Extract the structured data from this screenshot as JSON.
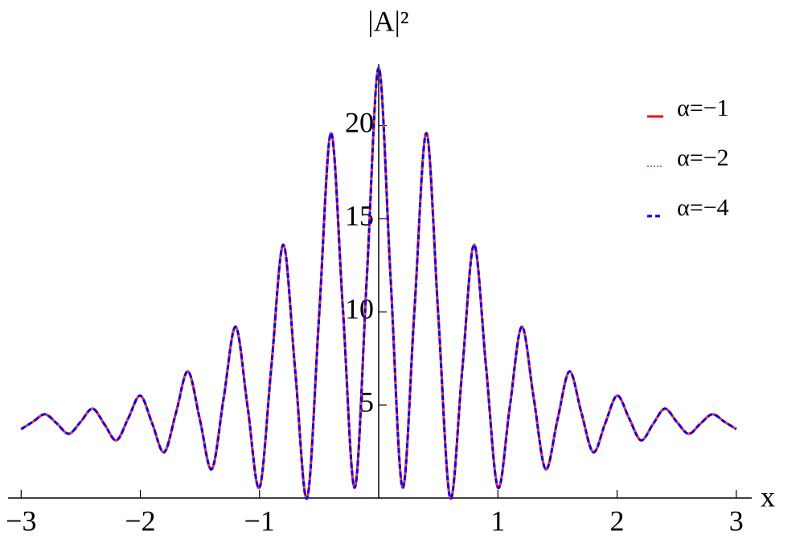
{
  "chart_data": {
    "type": "line",
    "ylabel": "|A|²",
    "xlabel": "x",
    "x": [
      -3.0,
      -2.9,
      -2.8,
      -2.7,
      -2.6,
      -2.5,
      -2.4,
      -2.3,
      -2.2,
      -2.1,
      -2.0,
      -1.9,
      -1.8,
      -1.7,
      -1.6,
      -1.5,
      -1.4,
      -1.3,
      -1.2,
      -1.1,
      -1.0,
      -0.9,
      -0.8,
      -0.7,
      -0.6,
      -0.5,
      -0.4,
      -0.3,
      -0.2,
      -0.1,
      0,
      0.1,
      0.2,
      0.3,
      0.4,
      0.5,
      0.6,
      0.7,
      0.8,
      0.9,
      1.0,
      1.1,
      1.2,
      1.3,
      1.4,
      1.5,
      1.6,
      1.7,
      1.8,
      1.9,
      2.0,
      2.1,
      2.2,
      2.3,
      2.4,
      2.5,
      2.6,
      2.7,
      2.8,
      2.9,
      3.0
    ],
    "series": [
      {
        "name": "α=−1",
        "color": "#ff0000",
        "style": "solid",
        "values": [
          3.7,
          4.1,
          4.5,
          4.0,
          3.45,
          4.1,
          4.8,
          3.95,
          3.1,
          4.3,
          5.5,
          4.0,
          2.46,
          4.6,
          6.8,
          4.2,
          1.55,
          5.4,
          9.2,
          4.9,
          0.56,
          7.1,
          13.6,
          6.8,
          0,
          9.8,
          19.6,
          10.1,
          0.56,
          11.8,
          23.1,
          11.8,
          0.56,
          10.1,
          19.6,
          9.8,
          0,
          6.8,
          13.6,
          7.1,
          0.56,
          4.9,
          9.2,
          5.4,
          1.55,
          4.2,
          6.8,
          4.6,
          2.46,
          4.0,
          5.5,
          4.3,
          3.1,
          3.95,
          4.8,
          4.1,
          3.45,
          4.0,
          4.5,
          4.1,
          3.7
        ]
      },
      {
        "name": "α=−2",
        "color": "#a07888",
        "style": "dotted",
        "values": [
          3.7,
          4.1,
          4.5,
          4.0,
          3.45,
          4.1,
          4.8,
          3.95,
          3.1,
          4.3,
          5.5,
          4.0,
          2.46,
          4.6,
          6.8,
          4.2,
          1.55,
          5.4,
          9.2,
          4.9,
          0.56,
          7.1,
          13.6,
          6.8,
          0,
          9.8,
          19.6,
          10.1,
          0.56,
          11.8,
          23.1,
          11.8,
          0.56,
          10.1,
          19.6,
          9.8,
          0,
          6.8,
          13.6,
          7.1,
          0.56,
          4.9,
          9.2,
          5.4,
          1.55,
          4.2,
          6.8,
          4.6,
          2.46,
          4.0,
          5.5,
          4.3,
          3.1,
          3.95,
          4.8,
          4.1,
          3.45,
          4.0,
          4.5,
          4.1,
          3.7
        ]
      },
      {
        "name": "α=−4",
        "color": "#0000ff",
        "style": "dashed",
        "values": [
          3.7,
          4.1,
          4.5,
          4.0,
          3.45,
          4.1,
          4.8,
          3.95,
          3.1,
          4.3,
          5.5,
          4.0,
          2.46,
          4.6,
          6.8,
          4.2,
          1.55,
          5.4,
          9.2,
          4.9,
          0.56,
          7.1,
          13.6,
          6.8,
          0,
          9.8,
          19.6,
          10.1,
          0.56,
          11.8,
          23.1,
          11.8,
          0.56,
          10.1,
          19.6,
          9.8,
          0,
          6.8,
          13.6,
          7.1,
          0.56,
          4.9,
          9.2,
          5.4,
          1.55,
          4.2,
          6.8,
          4.6,
          2.46,
          4.0,
          5.5,
          4.3,
          3.1,
          3.95,
          4.8,
          4.1,
          3.45,
          4.0,
          4.5,
          4.1,
          3.7
        ]
      }
    ],
    "xlim": [
      -3.11,
      3.13
    ],
    "ylim": [
      0,
      23.3
    ],
    "xticks": [
      {
        "value": -3,
        "label": "−3"
      },
      {
        "value": -2,
        "label": "−2"
      },
      {
        "value": -1,
        "label": "−1"
      },
      1,
      2,
      3
    ],
    "yticks": [
      5,
      10,
      15,
      20
    ],
    "grid": false,
    "legend": "top-right"
  }
}
